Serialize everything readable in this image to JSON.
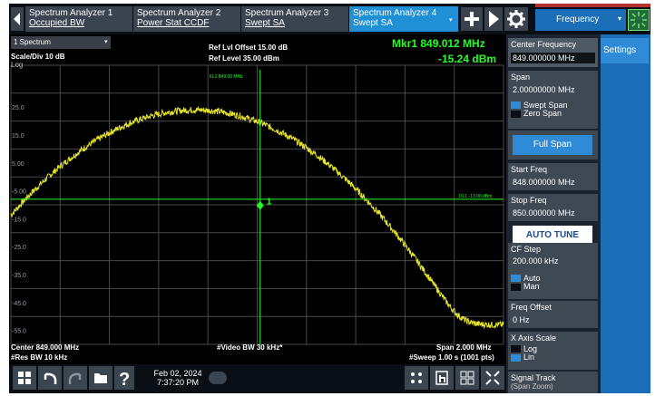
{
  "tabs": [
    {
      "line1": "Spectrum Analyzer 1",
      "line2": "Occupied BW",
      "active": false
    },
    {
      "line1": "Spectrum Analyzer 2",
      "line2": "Power Stat CCDF",
      "active": false
    },
    {
      "line1": "Spectrum Analyzer 3",
      "line2": "Swept SA",
      "active": false
    },
    {
      "line1": "Spectrum Analyzer 4",
      "line2": "Swept SA",
      "active": true
    }
  ],
  "menu": {
    "label": "Frequency",
    "settings_label": "Settings"
  },
  "graph": {
    "trace_select": "1 Spectrum",
    "scale_div": "Scale/Div 10 dB",
    "scale_type": "Log",
    "ref_offset": "Ref Lvl Offset 15.00 dB",
    "ref_level": "Ref Level 35.00 dBm",
    "marker_freq": "Mkr1  849.012 MHz",
    "marker_amp": "-15.24 dBm",
    "fl_label": "FL1 849.00 MHz",
    "dl_label": "DL1 -13.00 dBm",
    "marker_id": "1",
    "y_ticks": [
      "25.0",
      "15.0",
      "5.00",
      "-5.00",
      "-15.0",
      "-25.0",
      "-35.0",
      "-45.0",
      "-55.0"
    ],
    "center": "Center 849.000 MHz",
    "res_bw": "#Res BW 10 kHz",
    "video_bw": "#Video BW 30 kHz*",
    "span": "Span 2.000 MHz",
    "sweep": "#Sweep 1.00 s (1001 pts)"
  },
  "panel": {
    "center_freq": {
      "title": "Center Frequency",
      "value": "849.000000 MHz"
    },
    "span": {
      "title": "Span",
      "value": "2.00000000 MHz"
    },
    "span_opts": [
      "Swept Span",
      "Zero Span"
    ],
    "full_span": "Full Span",
    "start_freq": {
      "title": "Start Freq",
      "value": "848.000000 MHz"
    },
    "stop_freq": {
      "title": "Stop Freq",
      "value": "850.000000 MHz"
    },
    "auto_tune": "AUTO TUNE",
    "cf_step": {
      "title": "CF Step",
      "value": "200.000 kHz"
    },
    "cf_opts": [
      "Auto",
      "Man"
    ],
    "freq_offset": {
      "title": "Freq Offset",
      "value": "0 Hz"
    },
    "x_axis": {
      "title": "X Axis Scale"
    },
    "x_opts": [
      "Log",
      "Lin"
    ],
    "signal_track": {
      "title": "Signal Track",
      "sub": "(Span Zoom)"
    }
  },
  "taskbar": {
    "date": "Feb 02, 2024",
    "time": "7:37:20 PM"
  },
  "colors": {
    "trace": "#e8e62a",
    "marker": "#22ff22",
    "active_tab": "#1f8fd6",
    "grid": "#4a4a4a"
  }
}
